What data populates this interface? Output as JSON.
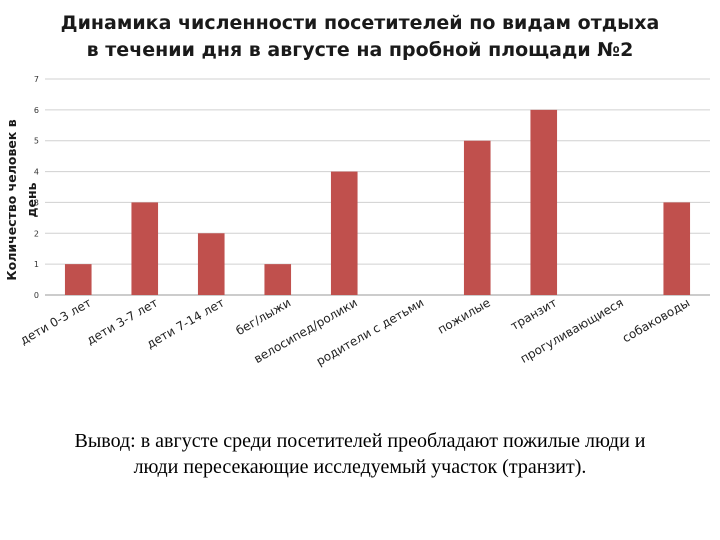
{
  "chart_data": {
    "type": "bar",
    "title_lines": [
      "Динамика численности посетителей по видам отдыха",
      "в течении дня в августе на пробной площади №2"
    ],
    "ylabel": "Количество человек в день",
    "xlabel": "",
    "ylim": [
      0,
      7
    ],
    "yticks": [
      0,
      1,
      2,
      3,
      4,
      5,
      6,
      7
    ],
    "grid": true,
    "legend": "none",
    "bar_color": "#c0504d",
    "categories": [
      "дети 0-3 лет",
      "дети 3-7 лет",
      "дети 7-14 лет",
      "бег/лыжи",
      "велосипед/ролики",
      "родители с детьми",
      "пожилые",
      "транзит",
      "прогуливающиеся",
      "собаководы"
    ],
    "values": [
      1,
      3,
      2,
      1,
      4,
      0,
      5,
      6,
      0,
      3
    ]
  },
  "conclusion_lines": [
    "Вывод: в августе среди посетителей преобладают пожилые люди и",
    "люди пересекающие исследуемый участок (транзит)."
  ]
}
